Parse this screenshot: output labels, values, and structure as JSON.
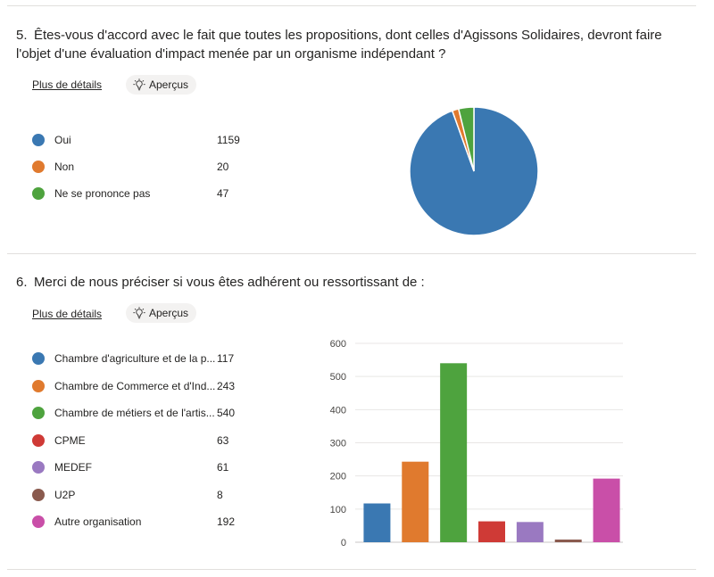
{
  "q5": {
    "number": "5.",
    "title_line1": "Êtes-vous d'accord avec le fait que toutes les propositions, dont celles d'Agissons Solidaires, devront faire",
    "title_line2": "l'objet d'une évaluation d'impact menée par un organisme indépendant ?",
    "details_label": "Plus de détails",
    "insights_label": "Aperçus",
    "legend": [
      {
        "label": "Oui",
        "value": "1159",
        "color": "#3a78b2"
      },
      {
        "label": "Non",
        "value": "20",
        "color": "#e07a2e"
      },
      {
        "label": "Ne se prononce pas",
        "value": "47",
        "color": "#4ea33e"
      }
    ]
  },
  "q6": {
    "number": "6.",
    "title": "Merci de nous préciser si vous êtes adhérent ou ressortissant de :",
    "details_label": "Plus de détails",
    "insights_label": "Aperçus",
    "legend": [
      {
        "label": "Chambre d'agriculture et de la p...",
        "value": "117",
        "color": "#3a78b2"
      },
      {
        "label": "Chambre de Commerce et d'Ind...",
        "value": "243",
        "color": "#e07a2e"
      },
      {
        "label": "Chambre de métiers et de l'artis...",
        "value": "540",
        "color": "#4ea33e"
      },
      {
        "label": "CPME",
        "value": "63",
        "color": "#cf3a36"
      },
      {
        "label": "MEDEF",
        "value": "61",
        "color": "#9a79c1"
      },
      {
        "label": "U2P",
        "value": "8",
        "color": "#8a5a4e"
      },
      {
        "label": "Autre organisation",
        "value": "192",
        "color": "#c94fa8"
      }
    ]
  },
  "chart_data": [
    {
      "type": "pie",
      "categories": [
        "Oui",
        "Non",
        "Ne se prononce pas"
      ],
      "values": [
        1159,
        20,
        47
      ],
      "colors": [
        "#3a78b2",
        "#e07a2e",
        "#4ea33e"
      ]
    },
    {
      "type": "bar",
      "categories": [
        "Chambre d'agriculture et de la p...",
        "Chambre de Commerce et d'Ind...",
        "Chambre de métiers et de l'artis...",
        "CPME",
        "MEDEF",
        "U2P",
        "Autre organisation"
      ],
      "values": [
        117,
        243,
        540,
        63,
        61,
        8,
        192
      ],
      "colors": [
        "#3a78b2",
        "#e07a2e",
        "#4ea33e",
        "#cf3a36",
        "#9a79c1",
        "#8a5a4e",
        "#c94fa8"
      ],
      "ylim": [
        0,
        600
      ],
      "yticks": [
        "0",
        "100",
        "200",
        "300",
        "400",
        "500",
        "600"
      ],
      "grid": true
    }
  ]
}
